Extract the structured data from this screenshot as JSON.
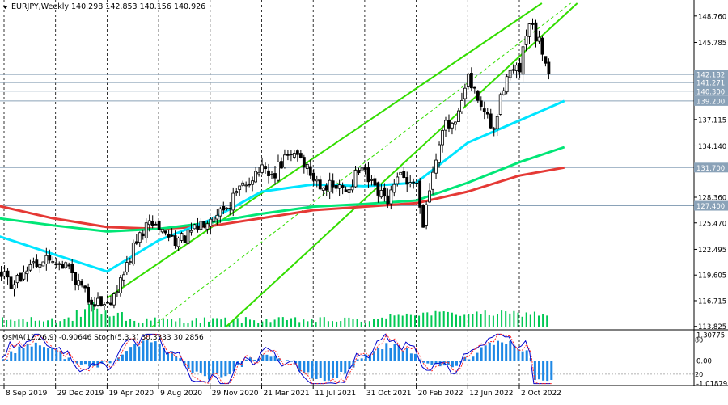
{
  "header": {
    "symbol": "EURJPY,Weekly",
    "ohlc": "140.298 142.853 140.156 140.926"
  },
  "colors": {
    "candle": "#000000",
    "ema_fast": "#00e5ff",
    "ema_mid": "#00e676",
    "ema_slow": "#e53935",
    "channel": "#33dd00",
    "hline": "#8aa2b8",
    "price_tag": "#8aa2b8",
    "volume": "#00c853",
    "osma": "#1e88e5",
    "stoch_main": "#0000cc",
    "stoch_signal": "#ff2a2a"
  },
  "chart_data": [
    {
      "type": "candlestick",
      "title": "EURJPY,Weekly",
      "ylim": [
        113.8,
        150.2
      ],
      "yticks": [
        "148.760",
        "145.785",
        "142.182",
        "141.271",
        "140.300",
        "139.200",
        "137.115",
        "134.140",
        "131.700",
        "128.360",
        "127.400",
        "125.470",
        "122.495",
        "119.605",
        "116.715",
        "113.825"
      ],
      "price_levels": [
        {
          "label": "142.182",
          "value": 142.182
        },
        {
          "label": "141.271",
          "value": 141.271
        },
        {
          "label": "140.300",
          "value": 140.3
        },
        {
          "label": "139.200",
          "value": 139.2
        },
        {
          "label": "131.700",
          "value": 131.7
        },
        {
          "label": "127.400",
          "value": 127.4
        }
      ],
      "xticks": [
        "8 Sep 2019",
        "29 Dec 2019",
        "19 Apr 2020",
        "9 Aug 2020",
        "29 Nov 2020",
        "21 Mar 2021",
        "11 Jul 2021",
        "31 Oct 2021",
        "20 Feb 2022",
        "12 Jun 2022",
        "2 Oct 2022"
      ],
      "price_path": [
        {
          "x": "2019-08-26",
          "y": 120.0
        },
        {
          "x": "2019-09-30",
          "y": 118.5
        },
        {
          "x": "2019-11-04",
          "y": 121.0
        },
        {
          "x": "2019-12-22",
          "y": 121.5
        },
        {
          "x": "2020-01-26",
          "y": 120.5
        },
        {
          "x": "2020-03-08",
          "y": 117.0
        },
        {
          "x": "2020-04-19",
          "y": 116.3
        },
        {
          "x": "2020-05-24",
          "y": 119.5
        },
        {
          "x": "2020-06-14",
          "y": 122.5
        },
        {
          "x": "2020-07-05",
          "y": 124.5
        },
        {
          "x": "2020-07-26",
          "y": 125.5
        },
        {
          "x": "2020-08-30",
          "y": 124.0
        },
        {
          "x": "2020-09-27",
          "y": 123.5
        },
        {
          "x": "2020-10-25",
          "y": 124.5
        },
        {
          "x": "2020-11-29",
          "y": 126.5
        },
        {
          "x": "2021-01-03",
          "y": 127.3
        },
        {
          "x": "2021-02-07",
          "y": 129.5
        },
        {
          "x": "2021-03-14",
          "y": 131.5
        },
        {
          "x": "2021-04-11",
          "y": 130.5
        },
        {
          "x": "2021-05-09",
          "y": 132.5
        },
        {
          "x": "2021-06-06",
          "y": 133.5
        },
        {
          "x": "2021-07-11",
          "y": 130.5
        },
        {
          "x": "2021-08-15",
          "y": 129.5
        },
        {
          "x": "2021-09-19",
          "y": 129.2
        },
        {
          "x": "2021-10-24",
          "y": 131.5
        },
        {
          "x": "2021-11-21",
          "y": 129.0
        },
        {
          "x": "2021-12-19",
          "y": 128.0
        },
        {
          "x": "2022-01-16",
          "y": 130.5
        },
        {
          "x": "2022-02-20",
          "y": 130.0
        },
        {
          "x": "2022-03-06",
          "y": 125.5
        },
        {
          "x": "2022-03-27",
          "y": 131.0
        },
        {
          "x": "2022-04-17",
          "y": 136.5
        },
        {
          "x": "2022-05-15",
          "y": 136.0
        },
        {
          "x": "2022-06-12",
          "y": 141.5
        },
        {
          "x": "2022-07-10",
          "y": 139.0
        },
        {
          "x": "2022-08-07",
          "y": 135.5
        },
        {
          "x": "2022-09-04",
          "y": 142.5
        },
        {
          "x": "2022-10-02",
          "y": 142.5
        },
        {
          "x": "2022-10-23",
          "y": 147.8
        },
        {
          "x": "2022-11-20",
          "y": 145.0
        },
        {
          "x": "2022-12-18",
          "y": 141.0
        },
        {
          "x": "2023-01-08",
          "y": 140.9
        }
      ],
      "ema_fast": [
        {
          "x": "2019-08-26",
          "y": 124.0
        },
        {
          "x": "2019-12-22",
          "y": 122.0
        },
        {
          "x": "2020-04-19",
          "y": 120.0
        },
        {
          "x": "2020-08-09",
          "y": 123.5
        },
        {
          "x": "2020-11-29",
          "y": 125.8
        },
        {
          "x": "2021-03-21",
          "y": 129.0
        },
        {
          "x": "2021-07-11",
          "y": 129.8
        },
        {
          "x": "2021-10-31",
          "y": 129.6
        },
        {
          "x": "2022-02-20",
          "y": 130.0
        },
        {
          "x": "2022-06-12",
          "y": 134.5
        },
        {
          "x": "2022-10-02",
          "y": 137.0
        },
        {
          "x": "2023-01-08",
          "y": 139.2
        }
      ],
      "ema_mid": [
        {
          "x": "2019-08-26",
          "y": 126.0
        },
        {
          "x": "2019-12-22",
          "y": 125.2
        },
        {
          "x": "2020-04-19",
          "y": 124.5
        },
        {
          "x": "2020-08-09",
          "y": 124.8
        },
        {
          "x": "2020-11-29",
          "y": 125.5
        },
        {
          "x": "2021-03-21",
          "y": 126.5
        },
        {
          "x": "2021-07-11",
          "y": 127.3
        },
        {
          "x": "2021-10-31",
          "y": 127.6
        },
        {
          "x": "2022-02-20",
          "y": 128.0
        },
        {
          "x": "2022-06-12",
          "y": 130.0
        },
        {
          "x": "2022-10-02",
          "y": 132.3
        },
        {
          "x": "2023-01-08",
          "y": 134.0
        }
      ],
      "ema_slow": [
        {
          "x": "2019-08-26",
          "y": 127.4
        },
        {
          "x": "2019-12-22",
          "y": 126.0
        },
        {
          "x": "2020-04-19",
          "y": 125.0
        },
        {
          "x": "2020-08-09",
          "y": 124.8
        },
        {
          "x": "2020-11-29",
          "y": 125.1
        },
        {
          "x": "2021-03-21",
          "y": 126.0
        },
        {
          "x": "2021-07-11",
          "y": 126.9
        },
        {
          "x": "2021-10-31",
          "y": 127.3
        },
        {
          "x": "2022-02-20",
          "y": 127.7
        },
        {
          "x": "2022-06-12",
          "y": 129.0
        },
        {
          "x": "2022-10-02",
          "y": 130.8
        },
        {
          "x": "2023-01-08",
          "y": 131.7
        }
      ],
      "channel_upper": [
        {
          "x": "2020-04-19",
          "y": 117.0
        },
        {
          "x": "2022-11-20",
          "y": 150.2
        }
      ],
      "channel_lower": [
        {
          "x": "2021-01-03",
          "y": 113.8
        },
        {
          "x": "2023-02-05",
          "y": 150.2
        }
      ],
      "channel_mid": [
        {
          "x": "2020-07-26",
          "y": 113.8
        },
        {
          "x": "2023-01-22",
          "y": 150.2
        }
      ]
    },
    {
      "type": "oscillator",
      "label": "OsMA(12,26,9) -0.90646   Stoch(5,3,3) 30.3333 30.2856",
      "yticks_left": [
        "80",
        "20"
      ],
      "yticks_right": [
        "1.30775",
        "0.00",
        "-1.01879"
      ],
      "ylim": [
        -1.3,
        1.5
      ]
    }
  ]
}
